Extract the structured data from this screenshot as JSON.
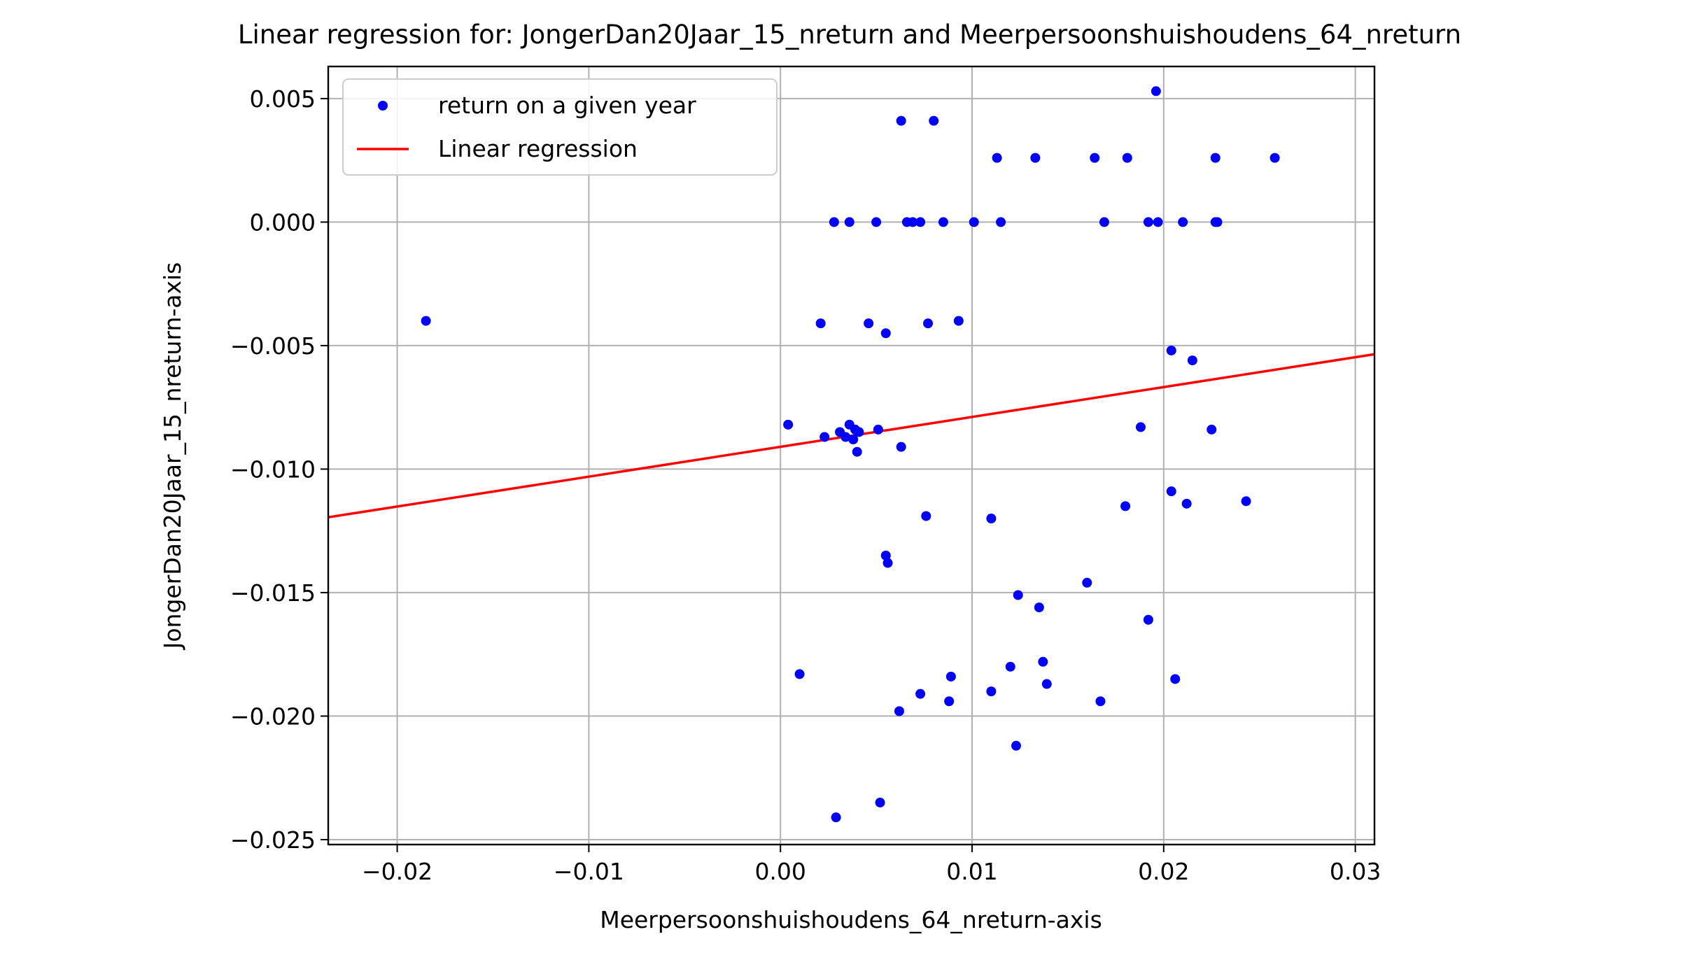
{
  "chart_data": {
    "type": "scatter",
    "title": "Linear regression for: JongerDan20Jaar_15_nreturn and Meerpersoonshuishoudens_64_nreturn",
    "xlabel": "Meerpersoonshuishoudens_64_nreturn-axis",
    "ylabel": "JongerDan20Jaar_15_nreturn-axis",
    "xlim": [
      -0.0236,
      0.031
    ],
    "ylim": [
      -0.0252,
      0.0063
    ],
    "xticks": [
      -0.02,
      -0.01,
      0.0,
      0.01,
      0.02,
      0.03
    ],
    "xtick_labels": [
      "−0.02",
      "−0.01",
      "0.00",
      "0.01",
      "0.02",
      "0.03"
    ],
    "yticks": [
      0.005,
      0.0,
      -0.005,
      -0.01,
      -0.015,
      -0.02,
      -0.025
    ],
    "ytick_labels": [
      "0.005",
      "0.000",
      "−0.005",
      "−0.010",
      "−0.015",
      "−0.020",
      "−0.025"
    ],
    "grid": true,
    "legend_position": "top-left",
    "series": [
      {
        "name": "return on a given year",
        "kind": "scatter",
        "color": "#0000ff",
        "points": [
          [
            -0.0185,
            -0.004
          ],
          [
            0.0063,
            0.0041
          ],
          [
            0.008,
            0.0041
          ],
          [
            0.0196,
            0.0053
          ],
          [
            0.0113,
            0.0026
          ],
          [
            0.0133,
            0.0026
          ],
          [
            0.0164,
            0.0026
          ],
          [
            0.0181,
            0.0026
          ],
          [
            0.0227,
            0.0026
          ],
          [
            0.0258,
            0.0026
          ],
          [
            0.0028,
            0.0
          ],
          [
            0.0036,
            0.0
          ],
          [
            0.005,
            0.0
          ],
          [
            0.0066,
            0.0
          ],
          [
            0.0069,
            0.0
          ],
          [
            0.0073,
            0.0
          ],
          [
            0.0085,
            0.0
          ],
          [
            0.0101,
            0.0
          ],
          [
            0.0115,
            0.0
          ],
          [
            0.0169,
            0.0
          ],
          [
            0.0192,
            0.0
          ],
          [
            0.0197,
            0.0
          ],
          [
            0.021,
            0.0
          ],
          [
            0.0227,
            0.0
          ],
          [
            0.0228,
            0.0
          ],
          [
            0.0021,
            -0.0041
          ],
          [
            0.0046,
            -0.0041
          ],
          [
            0.0077,
            -0.0041
          ],
          [
            0.0093,
            -0.004
          ],
          [
            0.0055,
            -0.0045
          ],
          [
            0.0204,
            -0.0052
          ],
          [
            0.0215,
            -0.0056
          ],
          [
            0.0004,
            -0.0082
          ],
          [
            0.0023,
            -0.0087
          ],
          [
            0.0031,
            -0.0085
          ],
          [
            0.0034,
            -0.0087
          ],
          [
            0.0036,
            -0.0082
          ],
          [
            0.0038,
            -0.0088
          ],
          [
            0.0039,
            -0.0084
          ],
          [
            0.0041,
            -0.0085
          ],
          [
            0.004,
            -0.0093
          ],
          [
            0.0051,
            -0.0084
          ],
          [
            0.0063,
            -0.0091
          ],
          [
            0.0188,
            -0.0083
          ],
          [
            0.0225,
            -0.0084
          ],
          [
            0.0076,
            -0.0119
          ],
          [
            0.011,
            -0.012
          ],
          [
            0.018,
            -0.0115
          ],
          [
            0.0204,
            -0.0109
          ],
          [
            0.0212,
            -0.0114
          ],
          [
            0.0243,
            -0.0113
          ],
          [
            0.0055,
            -0.0135
          ],
          [
            0.0056,
            -0.0138
          ],
          [
            0.0124,
            -0.0151
          ],
          [
            0.0135,
            -0.0156
          ],
          [
            0.016,
            -0.0146
          ],
          [
            0.0192,
            -0.0161
          ],
          [
            0.001,
            -0.0183
          ],
          [
            0.012,
            -0.018
          ],
          [
            0.0137,
            -0.0178
          ],
          [
            0.0139,
            -0.0187
          ],
          [
            0.0089,
            -0.0184
          ],
          [
            0.0206,
            -0.0185
          ],
          [
            0.0073,
            -0.0191
          ],
          [
            0.011,
            -0.019
          ],
          [
            0.0062,
            -0.0198
          ],
          [
            0.0088,
            -0.0194
          ],
          [
            0.0167,
            -0.0194
          ],
          [
            0.0123,
            -0.0212
          ],
          [
            0.0029,
            -0.0241
          ],
          [
            0.0052,
            -0.0235
          ]
        ]
      },
      {
        "name": "Linear regression",
        "kind": "line",
        "color": "#ff0000",
        "points": [
          [
            -0.0236,
            -0.01195
          ],
          [
            0.031,
            -0.00535
          ]
        ]
      }
    ]
  }
}
